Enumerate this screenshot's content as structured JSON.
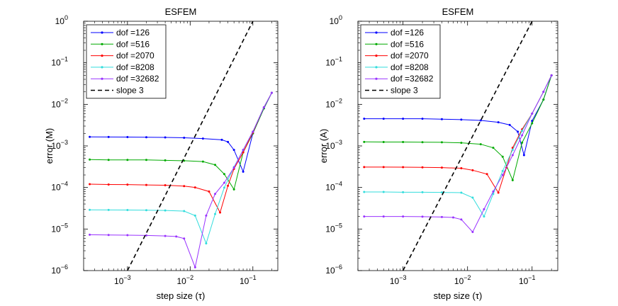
{
  "chart_data": [
    {
      "type": "line",
      "title": "ESFEM",
      "xlabel": "step size (τ)",
      "ylabel": "error (M)",
      "xscale": "log",
      "yscale": "log",
      "xlim": [
        0.0002,
        0.25
      ],
      "ylim": [
        1e-06,
        1
      ],
      "x_ticks": [
        0.001,
        0.01,
        0.1
      ],
      "x_tick_labels": [
        [
          "10",
          "−3"
        ],
        [
          "10",
          "−2"
        ],
        [
          "10",
          "−1"
        ]
      ],
      "y_ticks": [
        1e-06,
        1e-05,
        0.0001,
        0.001,
        0.01,
        0.1,
        1
      ],
      "y_tick_labels": [
        [
          "10",
          "−6"
        ],
        [
          "10",
          "−5"
        ],
        [
          "10",
          "−4"
        ],
        [
          "10",
          "−3"
        ],
        [
          "10",
          "−2"
        ],
        [
          "10",
          "−1"
        ],
        [
          "10",
          "0"
        ]
      ],
      "legend_position": "top-left",
      "x": [
        0.00025,
        0.0005,
        0.001,
        0.002,
        0.004,
        0.008,
        0.016,
        0.032,
        0.064,
        0.128,
        0.256
      ],
      "series": [
        {
          "name": "dof =126",
          "color": "#0000ff",
          "x": [
            0.00025,
            0.0005,
            0.001,
            0.002,
            0.004,
            0.008,
            0.016,
            0.032,
            0.04,
            0.05,
            0.07,
            0.1,
            0.15,
            0.2
          ],
          "values": [
            0.00165,
            0.00164,
            0.00163,
            0.00162,
            0.0016,
            0.00157,
            0.0015,
            0.0014,
            0.00125,
            0.0008,
            0.00024,
            0.002,
            0.008,
            0.019
          ]
        },
        {
          "name": "dof =516",
          "color": "#00aa00",
          "x": [
            0.00025,
            0.0005,
            0.001,
            0.002,
            0.004,
            0.008,
            0.016,
            0.025,
            0.035,
            0.05,
            0.07,
            0.1,
            0.15,
            0.2
          ],
          "values": [
            0.00047,
            0.00046,
            0.00046,
            0.00046,
            0.00045,
            0.00044,
            0.00042,
            0.00035,
            0.00021,
            9e-05,
            0.0007,
            0.002,
            0.008,
            0.019
          ]
        },
        {
          "name": "dof =2070",
          "color": "#ff0000",
          "x": [
            0.00025,
            0.0005,
            0.001,
            0.002,
            0.004,
            0.008,
            0.012,
            0.02,
            0.03,
            0.04,
            0.05,
            0.07,
            0.1,
            0.15,
            0.2
          ],
          "values": [
            0.00012,
            0.000118,
            0.000117,
            0.000115,
            0.000113,
            0.000108,
            0.0001,
            8e-05,
            2.5e-05,
            0.00011,
            0.00028,
            0.0007,
            0.0021,
            0.0085,
            0.019
          ]
        },
        {
          "name": "dof =8208",
          "color": "#33dddd",
          "x": [
            0.00025,
            0.0005,
            0.001,
            0.002,
            0.004,
            0.008,
            0.012,
            0.018,
            0.025,
            0.035,
            0.05,
            0.07,
            0.1,
            0.15,
            0.2
          ],
          "values": [
            2.9e-05,
            2.88e-05,
            2.87e-05,
            2.84e-05,
            2.8e-05,
            2.7e-05,
            2.1e-05,
            4.5e-06,
            2.3e-05,
            9.9e-05,
            0.00031,
            0.0008,
            0.0022,
            0.0085,
            0.019
          ]
        },
        {
          "name": "dof =32682",
          "color": "#9933ff",
          "x": [
            0.00025,
            0.0005,
            0.001,
            0.002,
            0.004,
            0.006,
            0.008,
            0.012,
            0.018,
            0.025,
            0.035,
            0.05,
            0.07,
            0.1,
            0.15,
            0.2
          ],
          "values": [
            7.3e-06,
            7.2e-06,
            7.1e-06,
            7e-06,
            6.8e-06,
            6.6e-06,
            5.9e-06,
            1.2e-06,
            2.1e-05,
            7e-05,
            0.00013,
            0.0003,
            0.0008,
            0.0022,
            0.0085,
            0.019
          ]
        },
        {
          "name": "slope 3",
          "color": "#000000",
          "dashed": true,
          "x": [
            0.001,
            0.1
          ],
          "values": [
            1e-06,
            1
          ]
        }
      ]
    },
    {
      "type": "line",
      "title": "ESFEM",
      "xlabel": "step size (τ)",
      "ylabel": "error (A)",
      "xscale": "log",
      "yscale": "log",
      "xlim": [
        0.0002,
        0.25
      ],
      "ylim": [
        1e-06,
        1
      ],
      "x_ticks": [
        0.001,
        0.01,
        0.1
      ],
      "x_tick_labels": [
        [
          "10",
          "−3"
        ],
        [
          "10",
          "−2"
        ],
        [
          "10",
          "−1"
        ]
      ],
      "y_ticks": [
        1e-06,
        1e-05,
        0.0001,
        0.001,
        0.01,
        0.1,
        1
      ],
      "y_tick_labels": [
        [
          "10",
          "−6"
        ],
        [
          "10",
          "−5"
        ],
        [
          "10",
          "−4"
        ],
        [
          "10",
          "−3"
        ],
        [
          "10",
          "−2"
        ],
        [
          "10",
          "−1"
        ],
        [
          "10",
          "0"
        ]
      ],
      "legend_position": "top-left",
      "series": [
        {
          "name": "dof =126",
          "color": "#0000ff",
          "x": [
            0.00025,
            0.0005,
            0.001,
            0.002,
            0.004,
            0.008,
            0.016,
            0.03,
            0.045,
            0.06,
            0.075,
            0.1,
            0.15,
            0.2
          ],
          "values": [
            0.0045,
            0.0045,
            0.0045,
            0.0045,
            0.0044,
            0.0043,
            0.0041,
            0.0037,
            0.0032,
            0.0022,
            0.0006,
            0.004,
            0.013,
            0.05
          ]
        },
        {
          "name": "dof =516",
          "color": "#00aa00",
          "x": [
            0.00025,
            0.0005,
            0.001,
            0.002,
            0.004,
            0.008,
            0.016,
            0.025,
            0.035,
            0.05,
            0.07,
            0.1,
            0.15,
            0.2
          ],
          "values": [
            0.00125,
            0.00124,
            0.00124,
            0.00123,
            0.00122,
            0.00119,
            0.0011,
            0.0009,
            0.00055,
            0.00015,
            0.0012,
            0.0035,
            0.013,
            0.05
          ]
        },
        {
          "name": "dof =2070",
          "color": "#ff0000",
          "x": [
            0.00025,
            0.0005,
            0.001,
            0.002,
            0.004,
            0.008,
            0.012,
            0.02,
            0.03,
            0.04,
            0.05,
            0.07,
            0.1,
            0.15,
            0.2
          ],
          "values": [
            0.00031,
            0.00031,
            0.000308,
            0.000305,
            0.0003,
            0.00029,
            0.00026,
            0.00021,
            7.5e-05,
            0.0003,
            0.0009,
            0.0025,
            0.006,
            0.02,
            0.05
          ]
        },
        {
          "name": "dof =8208",
          "color": "#33dddd",
          "x": [
            0.00025,
            0.0005,
            0.001,
            0.002,
            0.004,
            0.008,
            0.012,
            0.018,
            0.025,
            0.035,
            0.05,
            0.07,
            0.1,
            0.15,
            0.2
          ],
          "values": [
            7.8e-05,
            7.8e-05,
            7.7e-05,
            7.7e-05,
            7.6e-05,
            7.5e-05,
            5.7e-05,
            2e-05,
            7e-05,
            0.00025,
            0.0008,
            0.0023,
            0.006,
            0.02,
            0.05
          ]
        },
        {
          "name": "dof =32682",
          "color": "#9933ff",
          "x": [
            0.00025,
            0.0005,
            0.001,
            0.002,
            0.004,
            0.006,
            0.008,
            0.012,
            0.018,
            0.025,
            0.035,
            0.05,
            0.07,
            0.1,
            0.15,
            0.2
          ],
          "values": [
            2e-05,
            2e-05,
            2e-05,
            1.98e-05,
            1.95e-05,
            1.9e-05,
            1.7e-05,
            8.5e-06,
            3e-05,
            8e-05,
            0.0002,
            0.0006,
            0.0018,
            0.006,
            0.02,
            0.05
          ]
        },
        {
          "name": "slope 3",
          "color": "#000000",
          "dashed": true,
          "x": [
            0.001,
            0.1
          ],
          "values": [
            1e-06,
            1
          ]
        }
      ]
    }
  ]
}
